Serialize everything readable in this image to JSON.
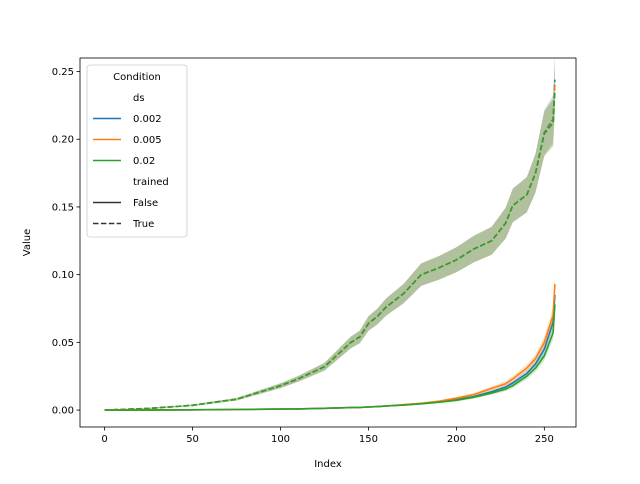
{
  "chart_data": {
    "type": "line",
    "xlabel": "Index",
    "ylabel": "Value",
    "xlim": [
      -14,
      268
    ],
    "ylim": [
      -0.0125,
      0.26
    ],
    "x_ticks": [
      0,
      50,
      100,
      150,
      200,
      250
    ],
    "x_tick_labels": [
      "0",
      "50",
      "100",
      "150",
      "200",
      "250"
    ],
    "y_ticks": [
      0.0,
      0.05,
      0.1,
      0.15,
      0.2,
      0.25
    ],
    "y_tick_labels": [
      "0.00",
      "0.05",
      "0.10",
      "0.15",
      "0.20",
      "0.25"
    ],
    "grid": false,
    "legend": {
      "placement": "top-left",
      "title": "Condition",
      "hue_header": "ds",
      "hue_entries": [
        {
          "label": "0.002",
          "color": "#1f77b4"
        },
        {
          "label": "0.005",
          "color": "#ff7f0e"
        },
        {
          "label": "0.02",
          "color": "#2ca02c"
        }
      ],
      "style_header": "trained",
      "style_entries": [
        {
          "label": "False",
          "dash": "solid"
        },
        {
          "label": "True",
          "dash": "dashed"
        }
      ]
    },
    "x": [
      0,
      25,
      50,
      75,
      100,
      110,
      125,
      140,
      145,
      150,
      155,
      160,
      170,
      180,
      190,
      200,
      210,
      220,
      228,
      232,
      240,
      245,
      250,
      255,
      256
    ],
    "series": [
      {
        "ds": "0.002",
        "trained": "True",
        "color": "#1f77b4",
        "dash": "dashed",
        "values": [
          0.0,
          0.0012,
          0.0035,
          0.008,
          0.018,
          0.023,
          0.032,
          0.05,
          0.054,
          0.064,
          0.069,
          0.076,
          0.086,
          0.1,
          0.105,
          0.111,
          0.119,
          0.125,
          0.138,
          0.151,
          0.159,
          0.175,
          0.205,
          0.215,
          0.244
        ]
      },
      {
        "ds": "0.005",
        "trained": "True",
        "color": "#ff7f0e",
        "dash": "dashed",
        "values": [
          0.0,
          0.0012,
          0.0035,
          0.008,
          0.018,
          0.023,
          0.032,
          0.05,
          0.054,
          0.064,
          0.069,
          0.076,
          0.086,
          0.1,
          0.105,
          0.111,
          0.119,
          0.125,
          0.138,
          0.151,
          0.159,
          0.175,
          0.204,
          0.213,
          0.24
        ]
      },
      {
        "ds": "0.02",
        "trained": "True",
        "color": "#2ca02c",
        "dash": "dashed",
        "values": [
          0.0,
          0.0012,
          0.0035,
          0.008,
          0.018,
          0.023,
          0.032,
          0.05,
          0.054,
          0.064,
          0.069,
          0.076,
          0.086,
          0.1,
          0.105,
          0.111,
          0.119,
          0.125,
          0.138,
          0.151,
          0.159,
          0.175,
          0.204,
          0.212,
          0.236
        ]
      },
      {
        "ds": "0.002",
        "trained": "False",
        "color": "#1f77b4",
        "dash": "solid",
        "values": [
          0.0,
          0.0,
          0.0002,
          0.0004,
          0.0007,
          0.0009,
          0.0013,
          0.0018,
          0.002,
          0.0023,
          0.0026,
          0.003,
          0.0038,
          0.0048,
          0.006,
          0.0078,
          0.01,
          0.0135,
          0.017,
          0.02,
          0.027,
          0.034,
          0.045,
          0.065,
          0.085
        ]
      },
      {
        "ds": "0.005",
        "trained": "False",
        "color": "#ff7f0e",
        "dash": "solid",
        "values": [
          0.0,
          0.0,
          0.0002,
          0.0004,
          0.0007,
          0.0009,
          0.0013,
          0.0018,
          0.002,
          0.0023,
          0.0026,
          0.003,
          0.004,
          0.005,
          0.0065,
          0.0088,
          0.0115,
          0.016,
          0.0195,
          0.023,
          0.031,
          0.038,
          0.05,
          0.07,
          0.093
        ]
      },
      {
        "ds": "0.02",
        "trained": "False",
        "color": "#2ca02c",
        "dash": "solid",
        "values": [
          0.0,
          0.0,
          0.0002,
          0.0004,
          0.0007,
          0.0009,
          0.0013,
          0.0018,
          0.002,
          0.0023,
          0.0026,
          0.003,
          0.0037,
          0.0046,
          0.0058,
          0.0072,
          0.0095,
          0.0125,
          0.0155,
          0.018,
          0.025,
          0.031,
          0.04,
          0.057,
          0.078
        ]
      }
    ]
  }
}
